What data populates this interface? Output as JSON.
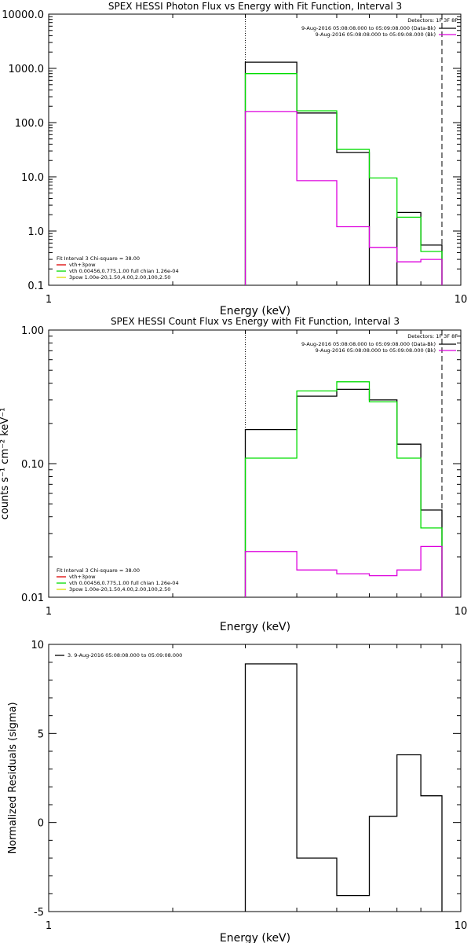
{
  "chart_data": [
    {
      "type": "line",
      "title": "SPEX HESSI Photon Flux vs Energy with Fit Function, Interval 3",
      "xlabel": "Energy (keV)",
      "ylabel": "",
      "xscale": "log",
      "yscale": "log",
      "xlim": [
        1,
        10
      ],
      "ylim": [
        0.1,
        10000
      ],
      "x_ticks": [
        {
          "v": 1,
          "label": "1"
        },
        {
          "v": 10,
          "label": "10"
        }
      ],
      "y_ticks": [
        {
          "v": 0.1,
          "label": "0.1"
        },
        {
          "v": 1,
          "label": "1.0"
        },
        {
          "v": 10,
          "label": "10.0"
        },
        {
          "v": 100,
          "label": "100.0"
        },
        {
          "v": 1000,
          "label": "1000.0"
        },
        {
          "v": 10000,
          "label": "10000.0"
        }
      ],
      "bin_edges": [
        3,
        4,
        5,
        6,
        7,
        8,
        9
      ],
      "series": [
        {
          "color": "#000000",
          "values": [
            1300,
            150,
            28,
            null,
            2.2,
            0.55
          ]
        },
        {
          "color": "#00dd00",
          "values": [
            800,
            165,
            32,
            9.5,
            1.8,
            0.42
          ]
        },
        {
          "color": "#dd00dd",
          "values": [
            160,
            8.5,
            1.2,
            0.5,
            0.27,
            0.3
          ]
        }
      ],
      "vlines": [
        {
          "x": 3,
          "style": "dotted"
        },
        {
          "x": 9,
          "style": "dashed"
        }
      ],
      "legend": {
        "placement": "top-right",
        "header": "Detectors: 1F 3F 8F",
        "entries": [
          {
            "text": "9-Aug-2016 05:08:08.000 to 05:09:08.000 (Data-Bk)",
            "color": "#000000"
          },
          {
            "text": "9-Aug-2016 05:08:08.000 to 05:09:08.000 (Bk)",
            "color": "#dd00dd"
          }
        ]
      },
      "annotation": {
        "placement": "bottom-left",
        "lines": [
          {
            "text": "Fit Interval 3   Chi-square = 38.00",
            "color": null
          },
          {
            "text": "vth+3pow",
            "color": "#dd0000"
          },
          {
            "text": "vth 0.00456,0.775,1.00  full chian 1.26e-04",
            "color": "#00dd00"
          },
          {
            "text": "3pow 1.00e-20,1.50,4.00,2.00,100,2.50",
            "color": "#dddd00"
          }
        ]
      }
    },
    {
      "type": "line",
      "title": "SPEX HESSI Count Flux vs Energy with Fit Function, Interval 3",
      "xlabel": "Energy (keV)",
      "ylabel": "counts s⁻¹ cm⁻² keV⁻¹",
      "xscale": "log",
      "yscale": "log",
      "xlim": [
        1,
        10
      ],
      "ylim": [
        0.01,
        1
      ],
      "x_ticks": [
        {
          "v": 1,
          "label": "1"
        },
        {
          "v": 10,
          "label": "10"
        }
      ],
      "y_ticks": [
        {
          "v": 0.01,
          "label": "0.01"
        },
        {
          "v": 0.1,
          "label": "0.10"
        },
        {
          "v": 1,
          "label": "1.00"
        }
      ],
      "bin_edges": [
        3,
        4,
        5,
        6,
        7,
        8,
        9
      ],
      "series": [
        {
          "color": "#000000",
          "values": [
            0.18,
            0.32,
            0.36,
            0.3,
            0.14,
            0.045
          ]
        },
        {
          "color": "#00dd00",
          "values": [
            0.11,
            0.35,
            0.41,
            0.29,
            0.11,
            0.033
          ]
        },
        {
          "color": "#dd00dd",
          "values": [
            0.022,
            0.016,
            0.015,
            0.0145,
            0.016,
            0.024
          ]
        }
      ],
      "vlines": [
        {
          "x": 3,
          "style": "dotted"
        },
        {
          "x": 9,
          "style": "dashed"
        }
      ],
      "legend": {
        "placement": "top-right",
        "header": "Detectors: 1F 3F 8F",
        "entries": [
          {
            "text": "9-Aug-2016 05:08:08.000 to 05:09:08.000 (Data-Bk)",
            "color": "#000000"
          },
          {
            "text": "9-Aug-2016 05:08:08.000 to 05:09:08.000 (Bk)",
            "color": "#dd00dd"
          }
        ]
      },
      "annotation": {
        "placement": "bottom-left",
        "lines": [
          {
            "text": "Fit Interval 3   Chi-square = 38.00",
            "color": null
          },
          {
            "text": "vth+3pow",
            "color": "#dd0000"
          },
          {
            "text": "vth 0.00456,0.775,1.00  full chian 1.26e-04",
            "color": "#00dd00"
          },
          {
            "text": "3pow 1.00e-20,1.50,4.00,2.00,100,2.50",
            "color": "#dddd00"
          }
        ]
      }
    },
    {
      "type": "line",
      "title": "",
      "xlabel": "Energy (keV)",
      "ylabel": "Normalized Residuals (sigma)",
      "xscale": "log",
      "yscale": "linear",
      "xlim": [
        1,
        10
      ],
      "ylim": [
        -5,
        10
      ],
      "x_ticks": [
        {
          "v": 1,
          "label": "1"
        },
        {
          "v": 10,
          "label": "10"
        }
      ],
      "y_ticks": [
        {
          "v": -5,
          "label": "-5"
        },
        {
          "v": 0,
          "label": "0"
        },
        {
          "v": 5,
          "label": "5"
        },
        {
          "v": 10,
          "label": "10"
        }
      ],
      "bin_edges": [
        3,
        4,
        5,
        6,
        7,
        8,
        9
      ],
      "series": [
        {
          "color": "#000000",
          "values": [
            8.9,
            -2.0,
            -4.1,
            0.35,
            3.8,
            1.5
          ]
        }
      ],
      "vlines": [],
      "legend": {
        "placement": "top-left",
        "header": "",
        "entries": [
          {
            "text": "3. 9-Aug-2016 05:08:08.000 to 05:09:08.000",
            "color": "#000000"
          }
        ]
      },
      "annotation": {
        "placement": "bottom-left",
        "lines": []
      }
    }
  ]
}
